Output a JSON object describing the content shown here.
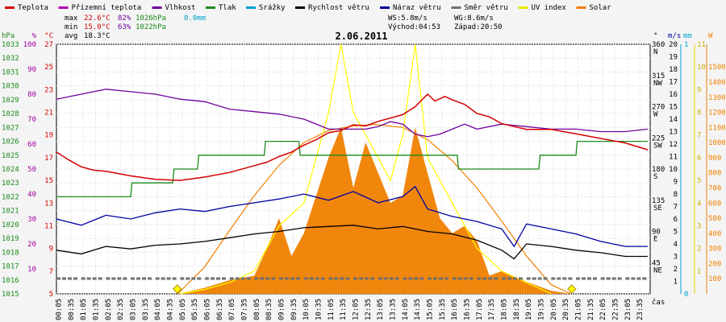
{
  "chart_data": {
    "type": "line",
    "title": "2.06.2011",
    "xlabel": "čas",
    "legend": [
      {
        "label": "Teplota",
        "color": "#d40000"
      },
      {
        "label": "Přízemní teplota",
        "color": "#b000b0"
      },
      {
        "label": "Vlhkost",
        "color": "#7000a0"
      },
      {
        "label": "Tlak",
        "color": "#1a8a1a"
      },
      {
        "label": "Srážky",
        "color": "#00a0d0"
      },
      {
        "label": "Rychlost větru",
        "color": "#000000"
      },
      {
        "label": "Náraz větru",
        "color": "#0000a0"
      },
      {
        "label": "Směr větru",
        "color": "#707070"
      },
      {
        "label": "UV index",
        "color": "#e8e800"
      },
      {
        "label": "Solar",
        "color": "#f08000"
      }
    ],
    "stats": {
      "max_label": "max",
      "max_temp": "22.6°C",
      "max_hum": "82%",
      "max_press": "1026hPa",
      "rain": "0.0mm",
      "min_label": "min",
      "min_temp": "15.0°C",
      "min_hum": "63%",
      "min_press": "1022hPa",
      "avg_label": "avg",
      "avg_temp": "18.3°C",
      "ws": "WS:5.8m/s",
      "wg": "WG:8.6m/s",
      "sunrise": "Východ:04:53",
      "sunset": "Západ:20:50"
    },
    "axes": {
      "hpa": {
        "unit": "hPa",
        "ticks": [
          "1033",
          "1032",
          "1031",
          "1030",
          "1029",
          "1028",
          "1027",
          "1026",
          "1025",
          "1024",
          "1023",
          "1022",
          "1021",
          "1020",
          "1019",
          "1018",
          "1017",
          "1016",
          "1015"
        ],
        "range": [
          1015,
          1033
        ]
      },
      "pct": {
        "unit": "%",
        "ticks": [
          "100",
          "90",
          "80",
          "70",
          "60",
          "50",
          "40",
          "30",
          "20",
          "10"
        ],
        "range": [
          0,
          100
        ]
      },
      "temp": {
        "unit": "°C",
        "ticks": [
          "27",
          "25",
          "23",
          "21",
          "19",
          "17",
          "15",
          "13",
          "11",
          "9",
          "7",
          "5"
        ],
        "range": [
          5,
          27
        ]
      },
      "dir": {
        "unit": "°",
        "ticks": [
          "360",
          "315",
          "270",
          "225",
          "180",
          "135",
          "90",
          "45"
        ],
        "labels": [
          "N",
          "NW",
          "W",
          "SW",
          "S",
          "SE",
          "E",
          "NE"
        ],
        "range": [
          0,
          360
        ]
      },
      "ms": {
        "unit": "m/s",
        "ticks": [
          "20",
          "19",
          "18",
          "17",
          "16",
          "15",
          "14",
          "13",
          "12",
          "11",
          "10",
          "9",
          "8",
          "7",
          "6",
          "5",
          "4",
          "3",
          "2",
          "1"
        ],
        "range": [
          0,
          20
        ]
      },
      "mm": {
        "unit": "mm",
        "ticks": [
          "1",
          "0"
        ],
        "range": [
          0,
          1
        ]
      },
      "uv": {
        "unit": "",
        "ticks": [
          "11",
          "10",
          "9",
          "8",
          "7",
          "6",
          "5",
          "4",
          "3",
          "2",
          "1"
        ],
        "range": [
          0,
          11
        ]
      },
      "w": {
        "unit": "W",
        "ticks": [
          "1500",
          "1400",
          "1300",
          "1200",
          "1100",
          "1000",
          "900",
          "800",
          "700",
          "600",
          "500",
          "400",
          "300",
          "200",
          "100"
        ],
        "range": [
          0,
          1650
        ]
      }
    },
    "time_labels": [
      "00:05",
      "00:35",
      "01:05",
      "01:35",
      "02:05",
      "02:35",
      "03:05",
      "03:35",
      "04:05",
      "04:35",
      "05:05",
      "05:35",
      "06:05",
      "06:35",
      "07:05",
      "07:35",
      "08:05",
      "08:35",
      "09:05",
      "09:35",
      "10:05",
      "10:35",
      "11:05",
      "11:35",
      "12:05",
      "12:35",
      "13:05",
      "13:35",
      "14:05",
      "14:35",
      "15:05",
      "15:35",
      "16:05",
      "16:35",
      "17:05",
      "17:35",
      "18:05",
      "18:35",
      "19:05",
      "19:35",
      "20:05",
      "20:35",
      "21:05",
      "21:35",
      "22:05",
      "22:35",
      "23:05",
      "23:35"
    ],
    "series": {
      "temperature": {
        "name": "Teplota",
        "unit": "°C",
        "hours": [
          0,
          0.5,
          1,
          1.5,
          2,
          3,
          4,
          5,
          6,
          7,
          8,
          8.5,
          9,
          9.5,
          10,
          10.5,
          11,
          11.5,
          12,
          12.5,
          13,
          13.5,
          14,
          14.5,
          15,
          15.3,
          15.7,
          16,
          16.5,
          17,
          17.5,
          18,
          19,
          20,
          21,
          22,
          23,
          23.9
        ],
        "values": [
          17.5,
          16.8,
          16.2,
          15.9,
          15.8,
          15.4,
          15.1,
          15.0,
          15.3,
          15.7,
          16.3,
          16.6,
          17.1,
          17.5,
          18.1,
          18.6,
          19.2,
          19.4,
          19.9,
          19.8,
          20.2,
          20.5,
          20.8,
          21.5,
          22.6,
          22.0,
          22.4,
          22.1,
          21.7,
          20.9,
          20.6,
          20.0,
          19.5,
          19.5,
          19.1,
          18.7,
          18.3,
          17.7
        ]
      },
      "humidity": {
        "name": "Vlhkost",
        "unit": "%",
        "hours": [
          0,
          0.5,
          1,
          1.5,
          2,
          3,
          4,
          5,
          6,
          7,
          8,
          9,
          10,
          11,
          12,
          12.5,
          13,
          13.5,
          14,
          14.5,
          15,
          15.5,
          16,
          16.5,
          17,
          17.5,
          18,
          19,
          20,
          21,
          22,
          23,
          23.9
        ],
        "values": [
          78,
          79,
          80,
          81,
          82,
          81,
          80,
          78,
          77,
          74,
          73,
          72,
          70,
          66,
          66,
          66,
          67,
          69,
          68,
          64,
          63,
          64,
          66,
          68,
          66,
          67,
          68,
          67,
          66,
          66,
          65,
          65,
          66
        ]
      },
      "pressure": {
        "name": "Tlak",
        "unit": "hPa",
        "hours": [
          0,
          3,
          3.05,
          4.7,
          4.75,
          5.7,
          5.75,
          8.4,
          8.45,
          9.8,
          9.85,
          16.2,
          16.25,
          19.5,
          19.55,
          21.0,
          21.05,
          23.9
        ],
        "values": [
          1022,
          1022,
          1023,
          1023,
          1024,
          1024,
          1025,
          1025,
          1026,
          1026,
          1025,
          1025,
          1024,
          1024,
          1025,
          1025,
          1026,
          1026
        ]
      },
      "wind_speed": {
        "name": "Rychlost větru",
        "unit": "m/s",
        "hours": [
          0,
          1,
          2,
          3,
          4,
          5,
          6,
          7,
          8,
          9,
          10,
          11,
          12,
          13,
          14,
          15,
          16,
          17,
          18,
          18.5,
          19,
          20,
          21,
          22,
          23,
          23.9
        ],
        "values": [
          3.5,
          3.2,
          3.8,
          3.6,
          3.9,
          4.0,
          4.2,
          4.5,
          4.8,
          5.0,
          5.3,
          5.4,
          5.5,
          5.2,
          5.4,
          5.0,
          4.8,
          4.3,
          3.5,
          2.8,
          4.0,
          3.8,
          3.5,
          3.3,
          3.0,
          3.0
        ]
      },
      "wind_gust": {
        "name": "Náraz větru",
        "unit": "m/s",
        "hours": [
          0,
          1,
          2,
          3,
          4,
          5,
          6,
          7,
          8,
          9,
          10,
          11,
          12,
          13,
          14,
          14.5,
          15,
          16,
          17,
          18,
          18.5,
          19,
          20,
          21,
          22,
          23,
          23.9
        ],
        "values": [
          6.0,
          5.5,
          6.3,
          6.0,
          6.5,
          6.8,
          6.6,
          7.0,
          7.3,
          7.6,
          8.0,
          7.5,
          8.2,
          7.3,
          7.8,
          8.6,
          6.8,
          6.2,
          5.8,
          5.2,
          3.8,
          5.6,
          5.2,
          4.8,
          4.2,
          3.8,
          3.8
        ]
      },
      "wind_dir": {
        "name": "Směr větru",
        "unit": "°",
        "hours": [
          0,
          1,
          2,
          3,
          4,
          5,
          6,
          7,
          8,
          9,
          10,
          11,
          12,
          13,
          14,
          15,
          16,
          17,
          18,
          19,
          20,
          21,
          22,
          23
        ],
        "values": [
          22,
          22,
          22,
          22,
          22,
          22,
          22,
          22,
          22,
          22,
          22,
          22,
          22,
          22,
          22,
          22,
          22,
          22,
          22,
          22,
          22,
          22,
          22,
          22
        ]
      },
      "uv_index": {
        "name": "UV index",
        "unit": "",
        "hours": [
          5,
          6,
          7,
          8,
          8.5,
          9,
          10,
          10.5,
          11,
          11.5,
          12,
          12.5,
          13,
          13.5,
          14,
          14.5,
          15,
          16,
          17,
          18,
          19,
          20
        ],
        "values": [
          0,
          0.2,
          0.5,
          1,
          2,
          3,
          4,
          6,
          8,
          11,
          8,
          7,
          6,
          5,
          7,
          11,
          6,
          4,
          2,
          1,
          0.5,
          0
        ]
      },
      "solar": {
        "name": "Solar",
        "unit": "W",
        "hours": [
          4.9,
          6,
          7,
          8,
          8.5,
          9,
          9.5,
          10,
          10.5,
          11,
          11.5,
          12,
          12.5,
          13,
          13.5,
          14,
          14.5,
          15,
          15.5,
          16,
          16.5,
          17,
          17.5,
          18,
          19,
          20,
          20.8
        ],
        "values": [
          0,
          40,
          90,
          120,
          300,
          500,
          250,
          400,
          650,
          900,
          1100,
          700,
          1000,
          800,
          600,
          650,
          1100,
          800,
          500,
          400,
          450,
          350,
          120,
          150,
          80,
          20,
          0
        ]
      },
      "solar_theoretical": {
        "name": "Solar theoretical",
        "unit": "W",
        "hours": [
          4.9,
          6,
          7,
          8,
          9,
          10,
          11,
          12,
          12.87,
          14,
          15,
          16,
          17,
          18,
          19,
          20,
          20.8
        ],
        "values": [
          0,
          180,
          420,
          650,
          850,
          1000,
          1080,
          1110,
          1120,
          1100,
          1020,
          880,
          700,
          480,
          250,
          60,
          0
        ]
      }
    },
    "sun_markers": [
      {
        "label": "04:53",
        "hour": 4.88
      },
      {
        "label": "20:50",
        "hour": 20.83
      }
    ]
  }
}
